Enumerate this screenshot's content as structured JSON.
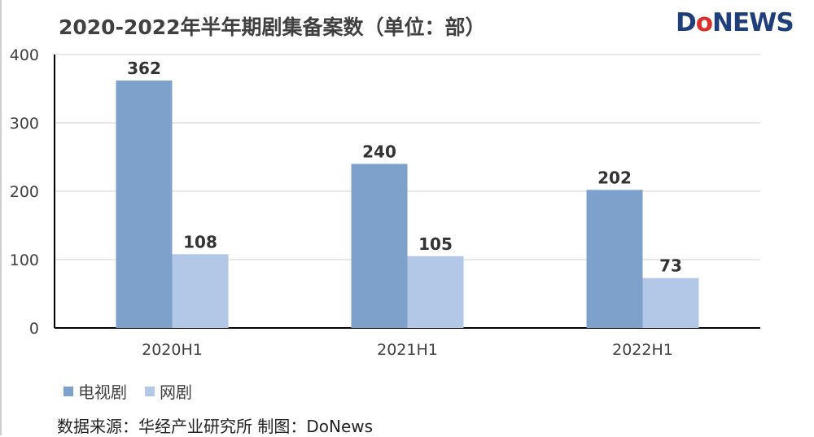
{
  "title": "2020-2022年半年期剧集备案数（单位：部）",
  "logo": {
    "part1": "D",
    "part2": "o",
    "part3": "NEWS"
  },
  "source": "数据来源：华经产业研究所  制图：DoNews",
  "colors": {
    "tv": "#7ea1cb",
    "web": "#b3c8e7",
    "grid": "#d9d9d9",
    "axis": "#000000",
    "text": "#404040"
  },
  "chart_data": {
    "type": "bar",
    "categories": [
      "2020H1",
      "2021H1",
      "2022H1"
    ],
    "series": [
      {
        "name": "电视剧",
        "values": [
          362,
          240,
          202
        ]
      },
      {
        "name": "网剧",
        "values": [
          108,
          105,
          73
        ]
      }
    ],
    "ylim": [
      0,
      400
    ],
    "yticks": [
      "0",
      "100",
      "200",
      "300",
      "400"
    ],
    "grid": true,
    "legend": "bottom-left"
  }
}
